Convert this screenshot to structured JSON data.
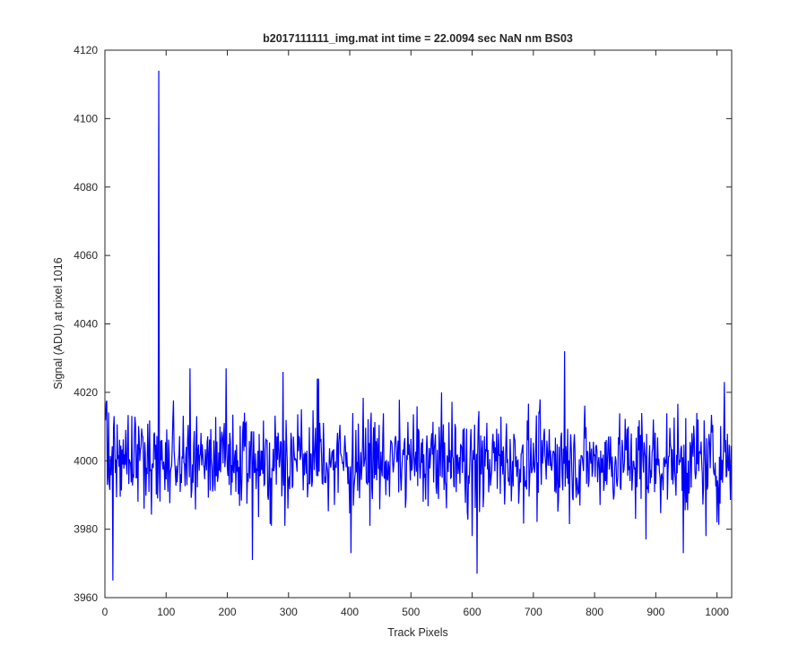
{
  "chart_data": {
    "type": "line",
    "title": "b2017111111_img.mat int time = 22.0094 sec  NaN nm BS03",
    "xlabel": "Track Pixels",
    "ylabel": "Signal (ADU) at pixel 1016",
    "xlim": [
      0,
      1024
    ],
    "ylim": [
      3960,
      4120
    ],
    "xticks": [
      0,
      100,
      200,
      300,
      400,
      500,
      600,
      700,
      800,
      900,
      1000
    ],
    "yticks": [
      3960,
      3980,
      4000,
      4020,
      4040,
      4060,
      4080,
      4100,
      4120
    ],
    "grid": false,
    "box": true,
    "line_color": "#0000ff",
    "series": [
      {
        "baseline": 4000,
        "points_count": 1024,
        "features": [
          {
            "x": 88,
            "y": 4114
          },
          {
            "x": 13,
            "y": 3965
          },
          {
            "x": 608,
            "y": 3967
          },
          {
            "x": 751,
            "y": 4032
          },
          {
            "x": 241,
            "y": 3971
          },
          {
            "x": 402,
            "y": 3973
          },
          {
            "x": 139,
            "y": 4027
          },
          {
            "x": 198,
            "y": 4027
          },
          {
            "x": 291,
            "y": 4026
          },
          {
            "x": 347,
            "y": 4024
          },
          {
            "x": 349,
            "y": 4024
          },
          {
            "x": 1012,
            "y": 4023
          },
          {
            "x": 945,
            "y": 3973
          },
          {
            "x": 600,
            "y": 3978
          },
          {
            "x": 884,
            "y": 3977
          },
          {
            "x": 982,
            "y": 3978
          },
          {
            "x": 1000,
            "y": 3982
          }
        ]
      }
    ]
  }
}
